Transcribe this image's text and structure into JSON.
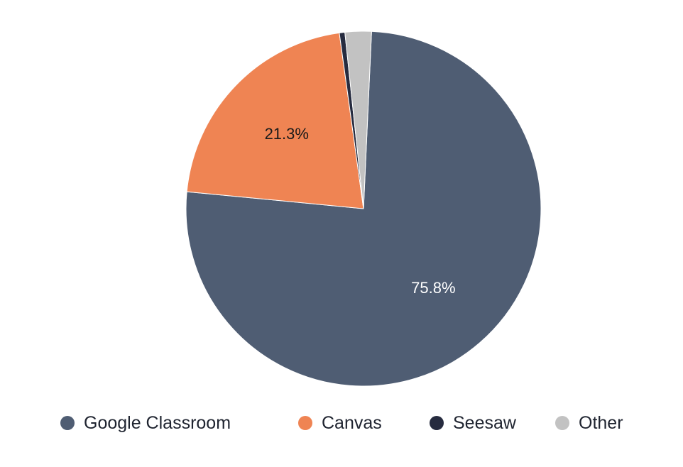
{
  "chart_data": {
    "type": "pie",
    "title": "",
    "categories": [
      "Google Classroom",
      "Canvas",
      "Seesaw",
      "Other"
    ],
    "values": [
      75.8,
      21.3,
      0.5,
      2.4
    ],
    "labels": [
      "75.8%",
      "21.3%",
      "",
      ""
    ],
    "colors": [
      "#4f5d73",
      "#ef8453",
      "#262b3f",
      "#c2c2c2"
    ],
    "label_colors": [
      "#ffffff",
      "#1a1a1a",
      "#1a1a1a",
      "#1a1a1a"
    ],
    "legend_position": "bottom"
  }
}
